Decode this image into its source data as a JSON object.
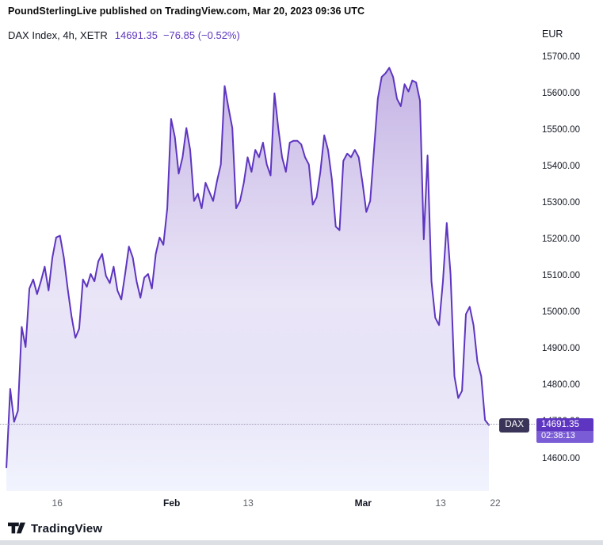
{
  "header": {
    "publish_text": "PoundSterlingLive published on TradingView.com, Mar 20, 2023 09:36 UTC"
  },
  "legend": {
    "title": "DAX Index, 4h, XETR",
    "last": "14691.35",
    "change": "−76.85 (−0.52%)",
    "symbol": "DAX",
    "countdown": "02:38:13"
  },
  "axis": {
    "currency": "EUR"
  },
  "footer": {
    "brand": "TradingView"
  },
  "colors": {
    "accent": "#5d35c0",
    "badge2": "#7a5cd6",
    "flag": "#3a3458",
    "dotted": "#9b98af",
    "fill_top": "rgba(105,62,185,0.40)",
    "fill_mid": "rgba(150,125,215,0.20)",
    "fill_bottom": "rgba(225,232,252,0.45)"
  },
  "chart_data": {
    "type": "area",
    "title": "DAX Index, 4h, XETR",
    "symbol": "DAX",
    "interval": "4h",
    "exchange": "XETR",
    "currency": "EUR",
    "last_price": 14691.35,
    "change": -76.85,
    "change_pct": -0.52,
    "countdown": "02:38:13",
    "legend_position": "top-left",
    "grid": false,
    "y_ticks": [
      14600,
      14700,
      14800,
      14900,
      15000,
      15100,
      15200,
      15300,
      15400,
      15500,
      15600,
      15700
    ],
    "y_axis_range": [
      14510,
      15795
    ],
    "x_ticks": {
      "labels": [
        "16",
        "Feb",
        "13",
        "Mar",
        "13",
        "22"
      ],
      "fractions": [
        0.107,
        0.321,
        0.464,
        0.679,
        0.824,
        0.926
      ],
      "bold": [
        false,
        true,
        false,
        true,
        false,
        false
      ]
    },
    "series_start_fraction": 0.012,
    "series_end_fraction": 0.914,
    "values": [
      14575,
      14790,
      14700,
      14730,
      14960,
      14905,
      15065,
      15090,
      15050,
      15085,
      15125,
      15060,
      15150,
      15205,
      15210,
      15150,
      15065,
      14990,
      14930,
      14955,
      15090,
      15070,
      15105,
      15085,
      15140,
      15160,
      15100,
      15080,
      15125,
      15060,
      15035,
      15105,
      15180,
      15150,
      15085,
      15040,
      15095,
      15105,
      15065,
      15160,
      15205,
      15185,
      15285,
      15530,
      15480,
      15380,
      15425,
      15505,
      15445,
      15305,
      15325,
      15285,
      15355,
      15330,
      15305,
      15360,
      15405,
      15620,
      15560,
      15505,
      15285,
      15305,
      15355,
      15425,
      15385,
      15445,
      15425,
      15465,
      15405,
      15375,
      15600,
      15505,
      15425,
      15385,
      15465,
      15470,
      15470,
      15460,
      15425,
      15405,
      15295,
      15315,
      15385,
      15485,
      15445,
      15365,
      15235,
      15225,
      15415,
      15435,
      15425,
      15445,
      15425,
      15355,
      15275,
      15305,
      15445,
      15585,
      15645,
      15655,
      15670,
      15645,
      15585,
      15565,
      15625,
      15605,
      15635,
      15630,
      15580,
      15200,
      15430,
      15085,
      14985,
      14965,
      15085,
      15245,
      15105,
      14825,
      14765,
      14785,
      14995,
      15015,
      14965,
      14865,
      14825,
      14705,
      14691.35
    ]
  }
}
